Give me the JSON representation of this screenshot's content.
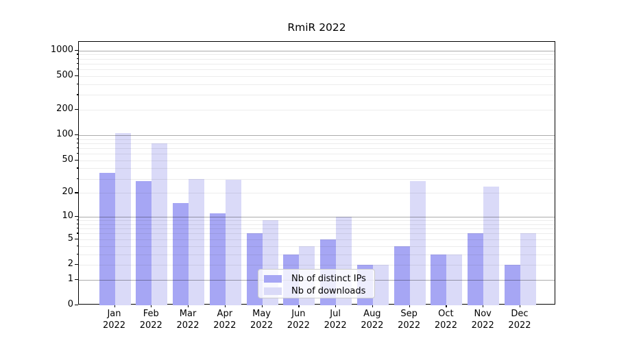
{
  "chart_data": {
    "type": "bar",
    "title": "RmiR 2022",
    "x_categories": [
      "Jan",
      "Feb",
      "Mar",
      "Apr",
      "May",
      "Jun",
      "Jul",
      "Aug",
      "Sep",
      "Oct",
      "Nov",
      "Dec"
    ],
    "x_year_label": "2022",
    "series": [
      {
        "name": "Nb of distinct IPs",
        "color": "#a6a6f4",
        "values": [
          35,
          28,
          15,
          11,
          6,
          3,
          5,
          2,
          4,
          3,
          6,
          2
        ]
      },
      {
        "name": "Nb of downloads",
        "color": "#dadaf8",
        "values": [
          105,
          80,
          30,
          29,
          9,
          4,
          10,
          2,
          28,
          3,
          24,
          6
        ]
      }
    ],
    "y_scale": "log1p",
    "ylim": [
      0,
      1270
    ],
    "y_ticks": [
      0,
      1,
      2,
      5,
      10,
      20,
      50,
      100,
      200,
      500,
      1000
    ],
    "y_major_gridlines": [
      1,
      10,
      100,
      1000
    ],
    "y_minor_gridlines": [
      2,
      3,
      4,
      5,
      6,
      7,
      8,
      9,
      20,
      30,
      40,
      50,
      60,
      70,
      80,
      90,
      200,
      300,
      400,
      500,
      600,
      700,
      800,
      900
    ],
    "grid": true,
    "legend_position": "lower center",
    "colors": {
      "major_grid": "#ababab",
      "minor_grid": "#ececec",
      "spine": "#000000",
      "text": "#000000",
      "legend_border": "#cccccc"
    }
  }
}
